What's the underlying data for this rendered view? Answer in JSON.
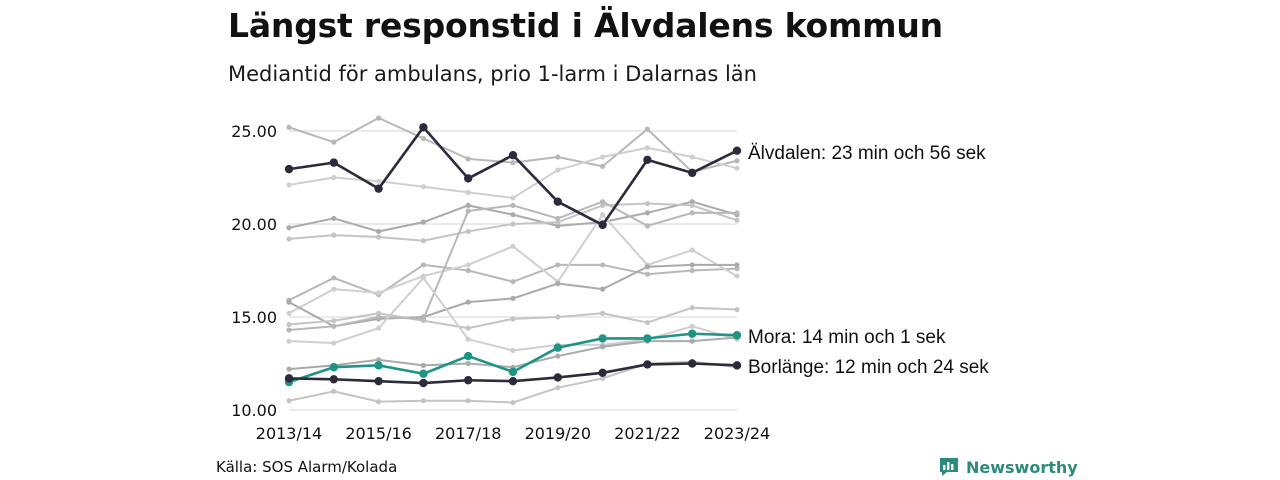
{
  "title": "Längst responstid i Älvdalens kommun",
  "subtitle": "Mediantid för ambulans, prio 1-larm i Dalarnas län",
  "source": "Källa: SOS Alarm/Kolada",
  "brand": "Newsworthy",
  "chart_data": {
    "type": "line",
    "x": [
      "2013/14",
      "2014/15",
      "2015/16",
      "2016/17",
      "2017/18",
      "2018/19",
      "2019/20",
      "2020/21",
      "2021/22",
      "2022/23",
      "2023/24"
    ],
    "x_tick_labels": [
      "2013/14",
      "2015/16",
      "2017/18",
      "2019/20",
      "2021/22",
      "2023/24"
    ],
    "y_ticks": [
      "10.00",
      "15.00",
      "20.00",
      "25.00"
    ],
    "ylim": [
      10,
      25.5
    ],
    "grid": true,
    "highlighted": [
      {
        "label": "Älvdalen: 23 min och 56 sek",
        "color": "#2b2b3b",
        "values": [
          22.95,
          23.3,
          21.9,
          25.2,
          22.45,
          23.7,
          21.2,
          19.95,
          23.45,
          22.75,
          23.94
        ]
      },
      {
        "label": "Mora: 14 min och 1 sek",
        "color": "#1e9484",
        "values": [
          11.5,
          12.3,
          12.4,
          11.95,
          12.9,
          12.05,
          13.35,
          13.85,
          13.85,
          14.1,
          14.02
        ]
      },
      {
        "label": "Borlänge: 12 min och 24 sek",
        "color": "#2b2b3b",
        "values": [
          11.7,
          11.65,
          11.55,
          11.45,
          11.6,
          11.55,
          11.75,
          12.0,
          12.45,
          12.5,
          12.4
        ]
      }
    ],
    "background_color": "#bdbdbd",
    "background": [
      [
        25.2,
        24.4,
        25.7,
        24.6,
        23.5,
        23.3,
        23.6,
        23.1,
        25.1,
        22.8,
        23.4
      ],
      [
        22.1,
        22.5,
        22.3,
        22.0,
        21.7,
        21.4,
        22.9,
        23.6,
        24.1,
        23.6,
        23.0
      ],
      [
        19.8,
        20.3,
        19.6,
        20.1,
        21.0,
        20.5,
        19.9,
        20.1,
        20.6,
        21.2,
        20.5
      ],
      [
        19.2,
        19.4,
        19.3,
        19.1,
        19.6,
        20.0,
        20.1,
        21.0,
        21.1,
        21.0,
        20.2
      ],
      [
        15.9,
        17.1,
        16.2,
        17.8,
        17.5,
        16.9,
        17.8,
        17.8,
        17.3,
        17.5,
        17.6
      ],
      [
        15.2,
        16.5,
        16.3,
        17.2,
        17.8,
        18.8,
        16.9,
        20.5,
        17.8,
        18.6,
        17.2
      ],
      [
        15.8,
        14.5,
        14.9,
        15.0,
        15.8,
        16.0,
        16.8,
        16.5,
        17.7,
        17.8,
        17.8
      ],
      [
        14.6,
        14.8,
        15.2,
        14.8,
        14.4,
        14.9,
        15.0,
        15.2,
        14.7,
        15.5,
        15.4
      ],
      [
        14.3,
        14.5,
        15.0,
        14.9,
        20.7,
        21.0,
        20.3,
        21.2,
        19.9,
        20.6,
        20.6
      ],
      [
        13.7,
        13.6,
        14.4,
        17.1,
        13.8,
        13.2,
        13.5,
        13.5,
        13.8,
        14.5,
        13.8
      ],
      [
        12.2,
        12.4,
        12.7,
        12.4,
        12.5,
        12.3,
        12.9,
        13.4,
        13.7,
        13.7,
        13.9
      ],
      [
        10.5,
        11.0,
        10.45,
        10.5,
        10.5,
        10.4,
        11.2,
        11.7,
        12.5,
        12.6,
        12.3
      ]
    ]
  }
}
